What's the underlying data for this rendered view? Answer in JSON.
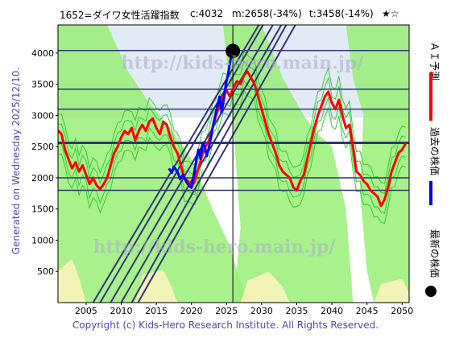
{
  "header": {
    "code_name": "1652=ダイワ女性活躍指数",
    "close": "c:4032",
    "mid": "m:2658(-34%)",
    "target": "t:3458(-14%)",
    "stars": "★☆"
  },
  "side_text": "Generated on Wednesday 2025/12/10.",
  "footer": "Copyright (c) Kids-Hero Research Institute. All Rights Reserved.",
  "watermark": "http://kids-hero.main.jp/",
  "legend": {
    "ai": "ＡＩ予測",
    "past": "過去の株価",
    "latest": "最新の株価"
  },
  "colors": {
    "ai": "#ff0000",
    "past": "#0000ff",
    "latest": "#000000",
    "band": "#33cc33",
    "band_fill": "#99ee77",
    "hline": "#333377",
    "sand": "#f5f2b8",
    "sky": "#dde6f3"
  },
  "chart_data": {
    "type": "line",
    "xlim": [
      2001,
      2051
    ],
    "ylim": [
      0,
      4450
    ],
    "x_ticks": [
      2005,
      2010,
      2015,
      2020,
      2025,
      2030,
      2035,
      2040,
      2045,
      2050
    ],
    "y_ticks": [
      500,
      1000,
      1500,
      2000,
      2500,
      3000,
      3500,
      4000
    ],
    "horizontal_levels": [
      1800,
      2000,
      2550,
      2570,
      3100,
      3420,
      4040
    ],
    "current_marker": {
      "x": 2025.9,
      "y": 4032
    },
    "current_vline_x": 2025.9,
    "trend_lines": [
      [
        [
          2012.4,
          0
        ],
        [
          2034.8,
          4450
        ]
      ],
      [
        [
          2011.5,
          0
        ],
        [
          2033.5,
          4450
        ]
      ],
      [
        [
          2010.0,
          0
        ],
        [
          2032.8,
          4450
        ]
      ],
      [
        [
          2008.5,
          0
        ],
        [
          2031.6,
          4450
        ]
      ],
      [
        [
          2007.0,
          0
        ],
        [
          2030.2,
          4450
        ]
      ],
      [
        [
          2006.0,
          0
        ],
        [
          2029.6,
          4450
        ]
      ]
    ],
    "series": [
      {
        "name": "ＡＩ予測",
        "points": [
          [
            2001,
            2760
          ],
          [
            2001.5,
            2700
          ],
          [
            2002,
            2450
          ],
          [
            2002.5,
            2300
          ],
          [
            2003,
            2150
          ],
          [
            2003.5,
            2250
          ],
          [
            2004,
            2100
          ],
          [
            2004.5,
            2200
          ],
          [
            2005,
            2050
          ],
          [
            2005.5,
            1900
          ],
          [
            2006,
            2000
          ],
          [
            2006.5,
            1880
          ],
          [
            2007,
            1820
          ],
          [
            2007.5,
            1900
          ],
          [
            2008,
            2000
          ],
          [
            2008.5,
            2200
          ],
          [
            2009,
            2400
          ],
          [
            2009.5,
            2500
          ],
          [
            2010,
            2650
          ],
          [
            2010.5,
            2750
          ],
          [
            2011,
            2700
          ],
          [
            2011.5,
            2800
          ],
          [
            2012,
            2600
          ],
          [
            2012.5,
            2750
          ],
          [
            2013,
            2850
          ],
          [
            2013.5,
            2750
          ],
          [
            2014,
            2900
          ],
          [
            2014.5,
            2950
          ],
          [
            2015,
            2800
          ],
          [
            2015.5,
            2700
          ],
          [
            2016,
            2900
          ],
          [
            2016.5,
            2850
          ],
          [
            2017,
            2650
          ],
          [
            2017.5,
            2500
          ],
          [
            2018,
            2400
          ],
          [
            2018.5,
            2200
          ],
          [
            2019,
            2000
          ],
          [
            2019.5,
            1950
          ],
          [
            2020,
            1850
          ],
          [
            2020.5,
            1950
          ],
          [
            2021,
            2150
          ],
          [
            2021.5,
            2350
          ],
          [
            2022,
            2500
          ],
          [
            2022.5,
            2600
          ],
          [
            2023,
            2800
          ],
          [
            2023.5,
            3000
          ],
          [
            2024,
            3150
          ],
          [
            2024.5,
            3300
          ],
          [
            2025,
            3400
          ],
          [
            2025.5,
            3300
          ],
          [
            2026,
            3450
          ],
          [
            2026.5,
            3550
          ],
          [
            2027,
            3500
          ],
          [
            2027.5,
            3650
          ],
          [
            2028,
            3700
          ],
          [
            2028.5,
            3600
          ],
          [
            2029,
            3500
          ],
          [
            2029.5,
            3300
          ],
          [
            2030,
            3100
          ],
          [
            2030.5,
            2900
          ],
          [
            2031,
            2700
          ],
          [
            2031.5,
            2550
          ],
          [
            2032,
            2400
          ],
          [
            2032.5,
            2200
          ],
          [
            2033,
            2100
          ],
          [
            2033.5,
            2050
          ],
          [
            2034,
            2000
          ],
          [
            2034.5,
            1850
          ],
          [
            2035,
            1800
          ],
          [
            2035.5,
            1950
          ],
          [
            2036,
            2050
          ],
          [
            2036.5,
            2300
          ],
          [
            2037,
            2550
          ],
          [
            2037.5,
            2800
          ],
          [
            2038,
            3000
          ],
          [
            2038.5,
            3150
          ],
          [
            2039,
            3300
          ],
          [
            2039.5,
            3380
          ],
          [
            2040,
            3200
          ],
          [
            2040.5,
            3100
          ],
          [
            2041,
            3250
          ],
          [
            2041.5,
            3000
          ],
          [
            2042,
            2800
          ],
          [
            2042.5,
            2850
          ],
          [
            2043,
            2500
          ],
          [
            2043.5,
            2100
          ],
          [
            2044,
            2050
          ],
          [
            2044.5,
            1950
          ],
          [
            2045,
            1900
          ],
          [
            2045.5,
            1800
          ],
          [
            2046,
            1750
          ],
          [
            2046.5,
            1700
          ],
          [
            2047,
            1550
          ],
          [
            2047.5,
            1650
          ],
          [
            2048,
            1850
          ],
          [
            2048.5,
            2100
          ],
          [
            2049,
            2250
          ],
          [
            2049.5,
            2400
          ],
          [
            2050,
            2450
          ],
          [
            2050.5,
            2550
          ]
        ]
      },
      {
        "name": "過去の株価",
        "points": [
          [
            2016.8,
            2150
          ],
          [
            2017.2,
            2080
          ],
          [
            2017.5,
            2180
          ],
          [
            2018.0,
            2100
          ],
          [
            2018.4,
            1980
          ],
          [
            2018.8,
            2050
          ],
          [
            2019.2,
            1950
          ],
          [
            2019.6,
            1880
          ],
          [
            2020.0,
            1840
          ],
          [
            2020.2,
            1950
          ],
          [
            2020.5,
            2150
          ],
          [
            2020.8,
            2350
          ],
          [
            2021.0,
            2450
          ],
          [
            2021.3,
            2300
          ],
          [
            2021.6,
            2550
          ],
          [
            2021.9,
            2500
          ],
          [
            2022.2,
            2350
          ],
          [
            2022.5,
            2500
          ],
          [
            2022.8,
            2650
          ],
          [
            2023.1,
            2850
          ],
          [
            2023.4,
            3000
          ],
          [
            2023.7,
            3150
          ],
          [
            2024.0,
            3300
          ],
          [
            2024.3,
            3050
          ],
          [
            2024.6,
            3250
          ],
          [
            2024.9,
            3500
          ],
          [
            2025.2,
            3650
          ],
          [
            2025.5,
            3850
          ],
          [
            2025.8,
            4032
          ]
        ]
      }
    ]
  }
}
